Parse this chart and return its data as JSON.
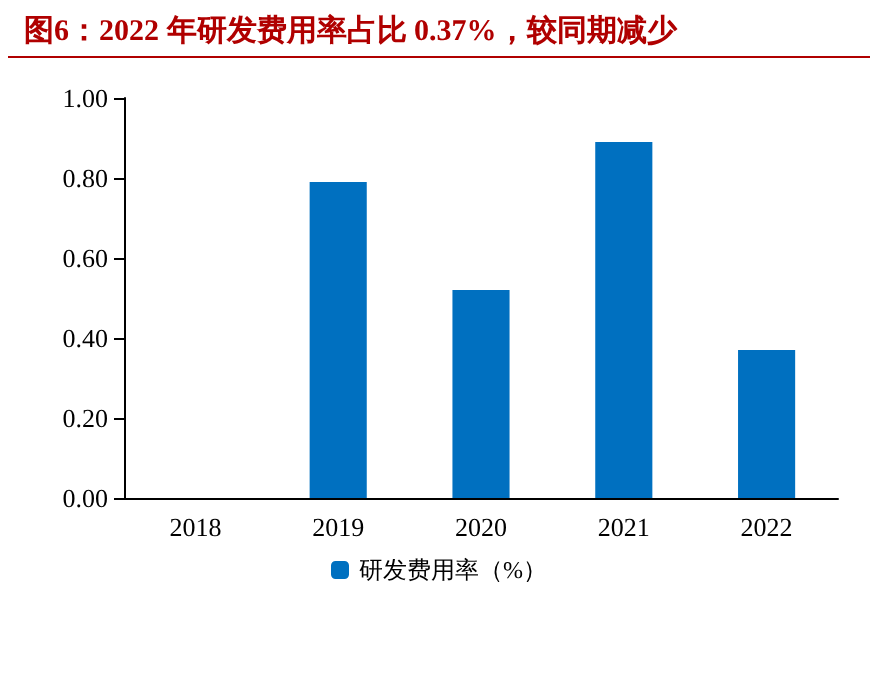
{
  "chart_data": {
    "type": "bar",
    "title": "图6：2022 年研发费用率占比 0.37%，较同期减少",
    "categories": [
      "2018",
      "2019",
      "2020",
      "2021",
      "2022"
    ],
    "series": [
      {
        "name": "研发费用率（%）",
        "color": "#0070c0",
        "values": [
          null,
          0.79,
          0.52,
          0.89,
          0.37
        ]
      }
    ],
    "ylim": [
      0,
      1
    ],
    "yticks": [
      {
        "value": 0,
        "label": "0.00"
      },
      {
        "value": 0.2,
        "label": "0.20"
      },
      {
        "value": 0.4,
        "label": "0.40"
      },
      {
        "value": 0.6,
        "label": "0.60"
      },
      {
        "value": 0.8,
        "label": "0.80"
      },
      {
        "value": 1,
        "label": "1.00"
      }
    ],
    "grid": false,
    "legend": "bottom"
  }
}
